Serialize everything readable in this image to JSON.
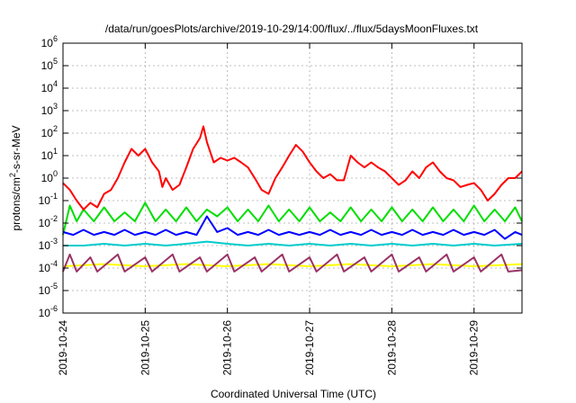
{
  "chart_data": {
    "type": "line",
    "title": "/data/run/goesPlots/archive/2019-10-29/14:00/flux/../flux/5daysMoonFluxes.txt",
    "xlabel": "Coordinated Universal Time (UTC)",
    "ylabel": {
      "base": "protons/cm",
      "sup": "2",
      "rest": "-s-sr-MeV"
    },
    "yscale": "log",
    "ylim": [
      1e-06,
      1000000.0
    ],
    "xlim": [
      "2019-10-24T00:00",
      "2019-10-29T14:00"
    ],
    "x_ticks": [
      "2019-10-24",
      "2019-10-25",
      "2019-10-26",
      "2019-10-27",
      "2019-10-28",
      "2019-10-29"
    ],
    "y_ticks": [
      {
        "base": "10",
        "exp": "-6"
      },
      {
        "base": "10",
        "exp": "-5"
      },
      {
        "base": "10",
        "exp": "-4"
      },
      {
        "base": "10",
        "exp": "-3"
      },
      {
        "base": "10",
        "exp": "-2"
      },
      {
        "base": "10",
        "exp": "-1"
      },
      {
        "base": "10",
        "exp": "0"
      },
      {
        "base": "10",
        "exp": "1"
      },
      {
        "base": "10",
        "exp": "2"
      },
      {
        "base": "10",
        "exp": "3"
      },
      {
        "base": "10",
        "exp": "4"
      },
      {
        "base": "10",
        "exp": "5"
      },
      {
        "base": "10",
        "exp": "6"
      }
    ],
    "grid": true,
    "series": [
      {
        "color": "#00dd00",
        "points": [
          [
            "2019-10-24T00:00",
            0.003
          ],
          [
            "2019-10-24T02:00",
            0.06
          ],
          [
            "2019-10-24T04:00",
            0.012
          ],
          [
            "2019-10-24T06:00",
            0.04
          ],
          [
            "2019-10-24T09:00",
            0.012
          ],
          [
            "2019-10-24T12:00",
            0.05
          ],
          [
            "2019-10-24T15:00",
            0.012
          ],
          [
            "2019-10-24T18:00",
            0.03
          ],
          [
            "2019-10-24T21:00",
            0.012
          ],
          [
            "2019-10-25T00:00",
            0.08
          ],
          [
            "2019-10-25T03:00",
            0.012
          ],
          [
            "2019-10-25T06:00",
            0.04
          ],
          [
            "2019-10-25T09:00",
            0.012
          ],
          [
            "2019-10-25T12:00",
            0.05
          ],
          [
            "2019-10-25T15:00",
            0.012
          ],
          [
            "2019-10-25T18:00",
            0.04
          ],
          [
            "2019-10-25T21:00",
            0.02
          ],
          [
            "2019-10-26T00:00",
            0.05
          ],
          [
            "2019-10-26T03:00",
            0.012
          ],
          [
            "2019-10-26T06:00",
            0.04
          ],
          [
            "2019-10-26T09:00",
            0.012
          ],
          [
            "2019-10-26T12:00",
            0.06
          ],
          [
            "2019-10-26T15:00",
            0.012
          ],
          [
            "2019-10-26T18:00",
            0.04
          ],
          [
            "2019-10-26T21:00",
            0.012
          ],
          [
            "2019-10-27T00:00",
            0.05
          ],
          [
            "2019-10-27T03:00",
            0.012
          ],
          [
            "2019-10-27T06:00",
            0.03
          ],
          [
            "2019-10-27T09:00",
            0.012
          ],
          [
            "2019-10-27T12:00",
            0.05
          ],
          [
            "2019-10-27T15:00",
            0.012
          ],
          [
            "2019-10-27T18:00",
            0.04
          ],
          [
            "2019-10-27T21:00",
            0.012
          ],
          [
            "2019-10-28T00:00",
            0.05
          ],
          [
            "2019-10-28T03:00",
            0.012
          ],
          [
            "2019-10-28T06:00",
            0.04
          ],
          [
            "2019-10-28T09:00",
            0.012
          ],
          [
            "2019-10-28T12:00",
            0.05
          ],
          [
            "2019-10-28T15:00",
            0.012
          ],
          [
            "2019-10-28T18:00",
            0.04
          ],
          [
            "2019-10-28T21:00",
            0.012
          ],
          [
            "2019-10-29T00:00",
            0.06
          ],
          [
            "2019-10-29T03:00",
            0.012
          ],
          [
            "2019-10-29T06:00",
            0.04
          ],
          [
            "2019-10-29T09:00",
            0.012
          ],
          [
            "2019-10-29T12:00",
            0.05
          ],
          [
            "2019-10-29T14:00",
            0.012
          ]
        ]
      },
      {
        "color": "#ff0000",
        "points": [
          [
            "2019-10-24T00:00",
            0.6
          ],
          [
            "2019-10-24T02:00",
            0.3
          ],
          [
            "2019-10-24T04:00",
            0.1
          ],
          [
            "2019-10-24T06:00",
            0.04
          ],
          [
            "2019-10-24T08:00",
            0.08
          ],
          [
            "2019-10-24T10:00",
            0.05
          ],
          [
            "2019-10-24T12:00",
            0.2
          ],
          [
            "2019-10-24T14:00",
            0.3
          ],
          [
            "2019-10-24T16:00",
            1
          ],
          [
            "2019-10-24T18:00",
            5
          ],
          [
            "2019-10-24T20:00",
            20
          ],
          [
            "2019-10-24T22:00",
            10
          ],
          [
            "2019-10-25T00:00",
            20
          ],
          [
            "2019-10-25T02:00",
            5
          ],
          [
            "2019-10-25T04:00",
            2
          ],
          [
            "2019-10-25T05:00",
            0.4
          ],
          [
            "2019-10-25T06:00",
            1
          ],
          [
            "2019-10-25T08:00",
            0.3
          ],
          [
            "2019-10-25T10:00",
            0.5
          ],
          [
            "2019-10-25T12:00",
            3
          ],
          [
            "2019-10-25T14:00",
            20
          ],
          [
            "2019-10-25T16:00",
            60
          ],
          [
            "2019-10-25T17:00",
            200
          ],
          [
            "2019-10-25T18:00",
            40
          ],
          [
            "2019-10-25T20:00",
            5
          ],
          [
            "2019-10-25T22:00",
            8
          ],
          [
            "2019-10-26T00:00",
            6
          ],
          [
            "2019-10-26T02:00",
            8
          ],
          [
            "2019-10-26T04:00",
            5
          ],
          [
            "2019-10-26T06:00",
            3
          ],
          [
            "2019-10-26T08:00",
            1
          ],
          [
            "2019-10-26T10:00",
            0.3
          ],
          [
            "2019-10-26T12:00",
            0.2
          ],
          [
            "2019-10-26T14:00",
            1
          ],
          [
            "2019-10-26T16:00",
            3
          ],
          [
            "2019-10-26T18:00",
            10
          ],
          [
            "2019-10-26T20:00",
            30
          ],
          [
            "2019-10-26T22:00",
            15
          ],
          [
            "2019-10-27T00:00",
            5
          ],
          [
            "2019-10-27T02:00",
            2
          ],
          [
            "2019-10-27T04:00",
            1
          ],
          [
            "2019-10-27T06:00",
            1.5
          ],
          [
            "2019-10-27T08:00",
            0.8
          ],
          [
            "2019-10-27T10:00",
            0.8
          ],
          [
            "2019-10-27T12:00",
            10
          ],
          [
            "2019-10-27T14:00",
            5
          ],
          [
            "2019-10-27T16:00",
            3
          ],
          [
            "2019-10-27T18:00",
            5
          ],
          [
            "2019-10-27T20:00",
            3
          ],
          [
            "2019-10-27T22:00",
            2
          ],
          [
            "2019-10-28T00:00",
            1
          ],
          [
            "2019-10-28T02:00",
            0.5
          ],
          [
            "2019-10-28T04:00",
            0.8
          ],
          [
            "2019-10-28T06:00",
            2
          ],
          [
            "2019-10-28T08:00",
            1
          ],
          [
            "2019-10-28T10:00",
            3
          ],
          [
            "2019-10-28T12:00",
            5
          ],
          [
            "2019-10-28T14:00",
            2
          ],
          [
            "2019-10-28T16:00",
            1
          ],
          [
            "2019-10-28T18:00",
            0.8
          ],
          [
            "2019-10-28T20:00",
            0.4
          ],
          [
            "2019-10-28T22:00",
            0.5
          ],
          [
            "2019-10-29T00:00",
            0.6
          ],
          [
            "2019-10-29T02:00",
            0.3
          ],
          [
            "2019-10-29T04:00",
            0.1
          ],
          [
            "2019-10-29T06:00",
            0.2
          ],
          [
            "2019-10-29T08:00",
            0.5
          ],
          [
            "2019-10-29T10:00",
            1
          ],
          [
            "2019-10-29T12:00",
            1
          ],
          [
            "2019-10-29T14:00",
            2
          ]
        ]
      },
      {
        "color": "#00cccc",
        "points": [
          [
            "2019-10-24T00:00",
            0.001
          ],
          [
            "2019-10-24T06:00",
            0.001
          ],
          [
            "2019-10-24T12:00",
            0.0012
          ],
          [
            "2019-10-24T18:00",
            0.001
          ],
          [
            "2019-10-25T00:00",
            0.0012
          ],
          [
            "2019-10-25T06:00",
            0.001
          ],
          [
            "2019-10-25T12:00",
            0.0012
          ],
          [
            "2019-10-25T18:00",
            0.0015
          ],
          [
            "2019-10-26T00:00",
            0.0012
          ],
          [
            "2019-10-26T06:00",
            0.001
          ],
          [
            "2019-10-26T12:00",
            0.0012
          ],
          [
            "2019-10-26T18:00",
            0.001
          ],
          [
            "2019-10-27T00:00",
            0.0012
          ],
          [
            "2019-10-27T06:00",
            0.001
          ],
          [
            "2019-10-27T12:00",
            0.0012
          ],
          [
            "2019-10-27T18:00",
            0.001
          ],
          [
            "2019-10-28T00:00",
            0.0012
          ],
          [
            "2019-10-28T06:00",
            0.001
          ],
          [
            "2019-10-28T12:00",
            0.0012
          ],
          [
            "2019-10-28T18:00",
            0.001
          ],
          [
            "2019-10-29T00:00",
            0.0012
          ],
          [
            "2019-10-29T06:00",
            0.001
          ],
          [
            "2019-10-29T14:00",
            0.0012
          ]
        ]
      },
      {
        "color": "#0000ff",
        "points": [
          [
            "2019-10-24T00:00",
            0.004
          ],
          [
            "2019-10-24T03:00",
            0.003
          ],
          [
            "2019-10-24T06:00",
            0.005
          ],
          [
            "2019-10-24T09:00",
            0.003
          ],
          [
            "2019-10-24T12:00",
            0.004
          ],
          [
            "2019-10-24T15:00",
            0.003
          ],
          [
            "2019-10-24T18:00",
            0.005
          ],
          [
            "2019-10-24T21:00",
            0.003
          ],
          [
            "2019-10-25T00:00",
            0.004
          ],
          [
            "2019-10-25T03:00",
            0.003
          ],
          [
            "2019-10-25T06:00",
            0.005
          ],
          [
            "2019-10-25T09:00",
            0.003
          ],
          [
            "2019-10-25T12:00",
            0.004
          ],
          [
            "2019-10-25T15:00",
            0.003
          ],
          [
            "2019-10-25T18:00",
            0.02
          ],
          [
            "2019-10-25T21:00",
            0.004
          ],
          [
            "2019-10-26T00:00",
            0.006
          ],
          [
            "2019-10-26T03:00",
            0.003
          ],
          [
            "2019-10-26T06:00",
            0.004
          ],
          [
            "2019-10-26T09:00",
            0.003
          ],
          [
            "2019-10-26T12:00",
            0.005
          ],
          [
            "2019-10-26T15:00",
            0.003
          ],
          [
            "2019-10-26T18:00",
            0.004
          ],
          [
            "2019-10-26T21:00",
            0.003
          ],
          [
            "2019-10-27T00:00",
            0.004
          ],
          [
            "2019-10-27T03:00",
            0.003
          ],
          [
            "2019-10-27T06:00",
            0.005
          ],
          [
            "2019-10-27T09:00",
            0.003
          ],
          [
            "2019-10-27T12:00",
            0.004
          ],
          [
            "2019-10-27T15:00",
            0.003
          ],
          [
            "2019-10-27T18:00",
            0.005
          ],
          [
            "2019-10-27T21:00",
            0.003
          ],
          [
            "2019-10-28T00:00",
            0.004
          ],
          [
            "2019-10-28T03:00",
            0.003
          ],
          [
            "2019-10-28T06:00",
            0.005
          ],
          [
            "2019-10-28T09:00",
            0.003
          ],
          [
            "2019-10-28T12:00",
            0.004
          ],
          [
            "2019-10-28T15:00",
            0.003
          ],
          [
            "2019-10-28T18:00",
            0.005
          ],
          [
            "2019-10-28T21:00",
            0.003
          ],
          [
            "2019-10-29T00:00",
            0.004
          ],
          [
            "2019-10-29T03:00",
            0.003
          ],
          [
            "2019-10-29T06:00",
            0.005
          ],
          [
            "2019-10-29T09:00",
            0.002
          ],
          [
            "2019-10-29T12:00",
            0.004
          ],
          [
            "2019-10-29T14:00",
            0.003
          ]
        ]
      },
      {
        "color": "#ffff00",
        "points": [
          [
            "2019-10-24T00:00",
            0.00012
          ],
          [
            "2019-10-24T12:00",
            0.00015
          ],
          [
            "2019-10-25T00:00",
            0.00012
          ],
          [
            "2019-10-25T12:00",
            0.00015
          ],
          [
            "2019-10-26T00:00",
            0.00012
          ],
          [
            "2019-10-26T12:00",
            0.00015
          ],
          [
            "2019-10-27T00:00",
            0.00012
          ],
          [
            "2019-10-27T12:00",
            0.00015
          ],
          [
            "2019-10-28T00:00",
            0.00012
          ],
          [
            "2019-10-28T12:00",
            0.00015
          ],
          [
            "2019-10-29T00:00",
            0.00012
          ],
          [
            "2019-10-29T14:00",
            0.00015
          ]
        ]
      },
      {
        "color": "#993366",
        "points": [
          [
            "2019-10-24T00:00",
            7e-05
          ],
          [
            "2019-10-24T02:00",
            0.0004
          ],
          [
            "2019-10-24T04:00",
            7e-05
          ],
          [
            "2019-10-24T08:00",
            0.0003
          ],
          [
            "2019-10-24T10:00",
            7e-05
          ],
          [
            "2019-10-24T16:00",
            0.0004
          ],
          [
            "2019-10-24T18:00",
            7e-05
          ],
          [
            "2019-10-25T00:00",
            0.0003
          ],
          [
            "2019-10-25T02:00",
            7e-05
          ],
          [
            "2019-10-25T08:00",
            0.0004
          ],
          [
            "2019-10-25T10:00",
            7e-05
          ],
          [
            "2019-10-25T16:00",
            0.0003
          ],
          [
            "2019-10-25T18:00",
            7e-05
          ],
          [
            "2019-10-26T00:00",
            0.0004
          ],
          [
            "2019-10-26T02:00",
            7e-05
          ],
          [
            "2019-10-26T08:00",
            0.0003
          ],
          [
            "2019-10-26T10:00",
            7e-05
          ],
          [
            "2019-10-26T16:00",
            0.0004
          ],
          [
            "2019-10-26T18:00",
            7e-05
          ],
          [
            "2019-10-27T00:00",
            0.0003
          ],
          [
            "2019-10-27T02:00",
            7e-05
          ],
          [
            "2019-10-27T08:00",
            0.0004
          ],
          [
            "2019-10-27T10:00",
            7e-05
          ],
          [
            "2019-10-27T16:00",
            0.0003
          ],
          [
            "2019-10-27T18:00",
            7e-05
          ],
          [
            "2019-10-28T00:00",
            0.0004
          ],
          [
            "2019-10-28T02:00",
            7e-05
          ],
          [
            "2019-10-28T08:00",
            0.0003
          ],
          [
            "2019-10-28T10:00",
            7e-05
          ],
          [
            "2019-10-28T16:00",
            0.0004
          ],
          [
            "2019-10-28T18:00",
            7e-05
          ],
          [
            "2019-10-29T00:00",
            0.0003
          ],
          [
            "2019-10-29T02:00",
            7e-05
          ],
          [
            "2019-10-29T08:00",
            0.0004
          ],
          [
            "2019-10-29T10:00",
            7e-05
          ],
          [
            "2019-10-29T14:00",
            8e-05
          ]
        ]
      }
    ]
  }
}
